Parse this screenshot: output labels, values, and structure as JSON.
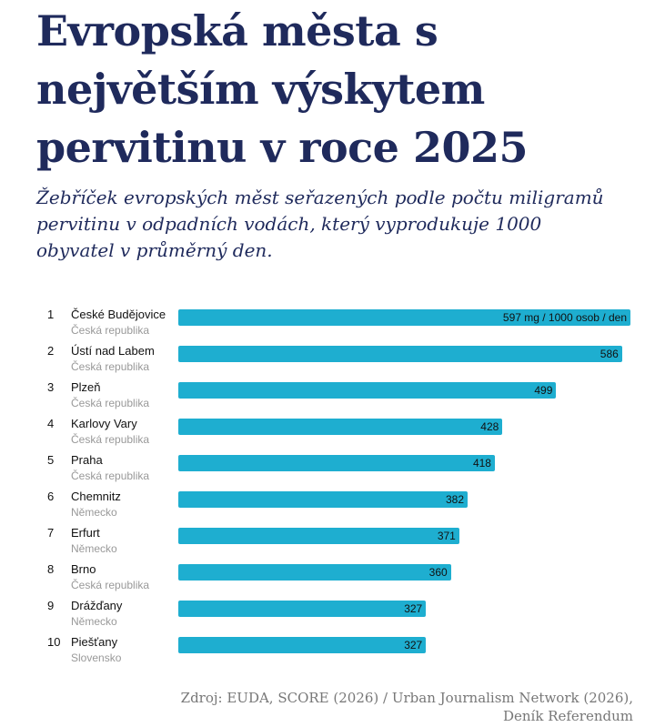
{
  "chart_data": {
    "type": "bar",
    "orientation": "horizontal",
    "title": "Evropská města s největším výskytem pervitinu v roce 2025",
    "subtitle": "Žebříček evropských měst seřazených podle počtu miligramů pervitinu v odpadních vodách, který vyprodukuje 1000 obyvatel v průměrný den.",
    "unit_label": "mg / 1000 osob / den",
    "bar_color": "#1eaed0",
    "rows": [
      {
        "rank": "1",
        "city": "České Budějovice",
        "country": "Česká republika",
        "value": 597
      },
      {
        "rank": "2",
        "city": "Ústí nad Labem",
        "country": "Česká republika",
        "value": 586
      },
      {
        "rank": "3",
        "city": "Plzeň",
        "country": "Česká republika",
        "value": 499
      },
      {
        "rank": "4",
        "city": "Karlovy Vary",
        "country": "Česká republika",
        "value": 428
      },
      {
        "rank": "5",
        "city": "Praha",
        "country": "Česká republika",
        "value": 418
      },
      {
        "rank": "6",
        "city": "Chemnitz",
        "country": "Německo",
        "value": 382
      },
      {
        "rank": "7",
        "city": "Erfurt",
        "country": "Německo",
        "value": 371
      },
      {
        "rank": "8",
        "city": "Brno",
        "country": "Česká republika",
        "value": 360
      },
      {
        "rank": "9",
        "city": "Drážďany",
        "country": "Německo",
        "value": 327
      },
      {
        "rank": "10",
        "city": "Piešťany",
        "country": "Slovensko",
        "value": 327
      }
    ],
    "source_line1": "Zdroj: EUDA, SCORE (2026) / Urban Journalism Network (2026),",
    "source_line2": "Deník Referendum"
  }
}
